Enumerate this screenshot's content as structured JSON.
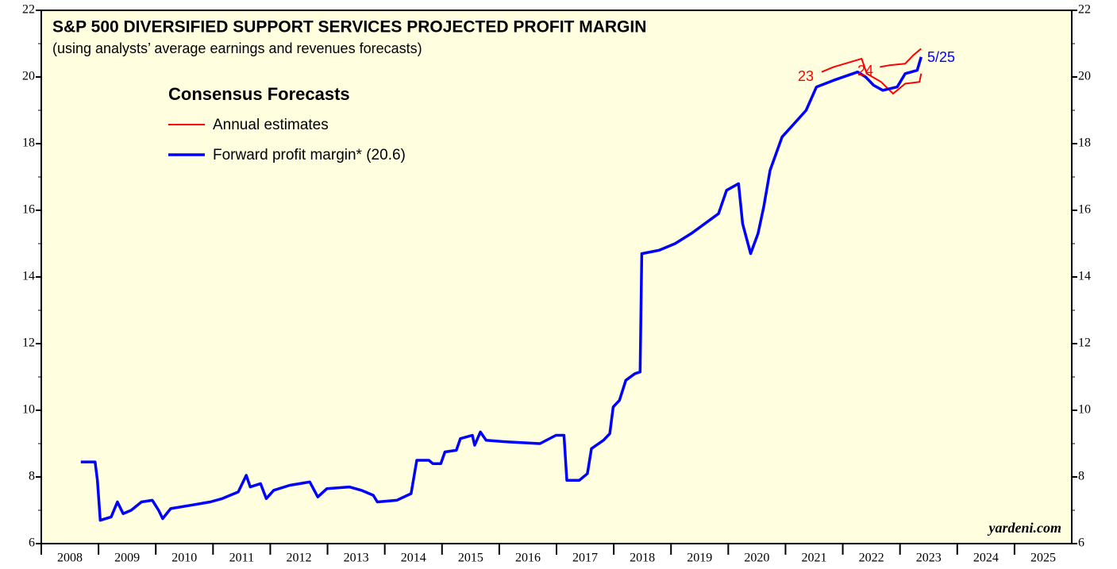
{
  "chart_data": {
    "type": "line",
    "title": "S&P 500 DIVERSIFIED SUPPORT SERVICES PROJECTED PROFIT MARGIN",
    "subtitle": "(using analysts’ average earnings and revenues forecasts)",
    "legend_title": "Consensus Forecasts",
    "source": "yardeni.com",
    "annotations": [
      "23",
      "24",
      "5/25"
    ],
    "xlim": [
      2008,
      2026
    ],
    "xticks": [
      2008,
      2009,
      2010,
      2011,
      2012,
      2013,
      2014,
      2015,
      2016,
      2017,
      2018,
      2019,
      2020,
      2021,
      2022,
      2023,
      2024,
      2025
    ],
    "ylim": [
      6,
      22
    ],
    "yticks": [
      6,
      8,
      10,
      12,
      14,
      16,
      18,
      20,
      22
    ],
    "yminor_ticks": [
      7,
      9,
      11,
      13,
      15,
      17,
      19,
      21
    ],
    "series": [
      {
        "name": "Annual estimates",
        "color": "#ff0000",
        "lines": [
          {
            "x": [
              2021.63,
              2021.84,
              2022.33,
              2022.42,
              2022.67,
              2022.88,
              2023.09,
              2023.34,
              2023.37
            ],
            "values": [
              20.15,
              20.3,
              20.55,
              20.1,
              19.85,
              19.5,
              19.8,
              19.85,
              20.1
            ]
          },
          {
            "x": [
              2022.65,
              2022.81,
              2023.09,
              2023.23,
              2023.37
            ],
            "values": [
              20.3,
              20.35,
              20.4,
              20.65,
              20.85
            ]
          }
        ]
      },
      {
        "name": "Forward profit margin* (20.6)",
        "color": "#0000ff",
        "x": [
          2008.69,
          2008.94,
          2008.98,
          2009.03,
          2009.22,
          2009.33,
          2009.43,
          2009.57,
          2009.75,
          2009.94,
          2010.05,
          2010.12,
          2010.26,
          2010.61,
          2010.95,
          2011.16,
          2011.44,
          2011.58,
          2011.65,
          2011.83,
          2011.93,
          2012.06,
          2012.34,
          2012.69,
          2012.83,
          2012.99,
          2013.38,
          2013.59,
          2013.8,
          2013.87,
          2014.21,
          2014.46,
          2014.56,
          2014.77,
          2014.84,
          2014.98,
          2015.05,
          2015.25,
          2015.32,
          2015.53,
          2015.57,
          2015.67,
          2015.77,
          2016.16,
          2016.71,
          2016.99,
          2017.13,
          2017.18,
          2017.4,
          2017.54,
          2017.61,
          2017.82,
          2017.93,
          2017.99,
          2018.1,
          2018.21,
          2018.37,
          2018.46,
          2018.49,
          2018.79,
          2019.07,
          2019.35,
          2019.55,
          2019.83,
          2019.97,
          2020.18,
          2020.25,
          2020.39,
          2020.52,
          2020.62,
          2020.73,
          2020.94,
          2021.15,
          2021.36,
          2021.54,
          2021.84,
          2022.26,
          2022.4,
          2022.54,
          2022.7,
          2022.95,
          2023.09,
          2023.3,
          2023.37
        ],
        "values": [
          8.45,
          8.45,
          7.9,
          6.7,
          6.8,
          7.25,
          6.9,
          7.0,
          7.25,
          7.3,
          7.0,
          6.75,
          7.05,
          7.15,
          7.25,
          7.35,
          7.55,
          8.05,
          7.7,
          7.8,
          7.35,
          7.6,
          7.75,
          7.85,
          7.4,
          7.65,
          7.7,
          7.6,
          7.45,
          7.25,
          7.3,
          7.5,
          8.5,
          8.5,
          8.4,
          8.4,
          8.75,
          8.8,
          9.15,
          9.25,
          8.95,
          9.35,
          9.1,
          9.05,
          9.0,
          9.25,
          9.25,
          7.9,
          7.9,
          8.1,
          8.85,
          9.1,
          9.3,
          10.1,
          10.3,
          10.9,
          11.1,
          11.15,
          14.7,
          14.8,
          15.0,
          15.3,
          15.55,
          15.9,
          16.6,
          16.8,
          15.6,
          14.7,
          15.3,
          16.1,
          17.2,
          18.2,
          18.6,
          19.0,
          19.7,
          19.9,
          20.15,
          20.0,
          19.75,
          19.6,
          19.7,
          20.1,
          20.2,
          20.6
        ]
      }
    ]
  }
}
